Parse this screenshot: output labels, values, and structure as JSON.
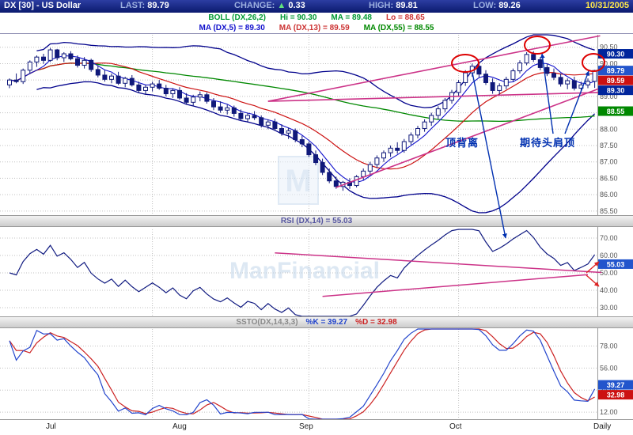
{
  "header": {
    "symbol_title": "DX [30] - US Dollar",
    "last_label": "LAST:",
    "last_value": "89.79",
    "change_label": "CHANGE:",
    "change_arrow": "▲",
    "change_value": "0.33",
    "high_label": "HIGH:",
    "high_value": "89.81",
    "low_label": "LOW:",
    "low_value": "89.26",
    "date": "10/31/2005"
  },
  "boll_row": {
    "label": "BOLL (DX,26,2)",
    "hi": "Hi = 90.30",
    "ma": "MA = 89.48",
    "lo": "Lo = 88.65"
  },
  "ma_row": {
    "ma5": "MA (DX,5) = 89.30",
    "ma13": "MA (DX,13) = 89.59",
    "ma55": "MA (DX,55) = 88.55"
  },
  "rsi_header": "RSI (DX,14) = 55.03",
  "ssto_header": {
    "label": "SSTO(DX,14,3,3)",
    "k": "%K = 39.27",
    "d": "%D = 32.98"
  },
  "annotations": {
    "top_divergence": "顶背离",
    "head_shoulders": "期待头肩顶"
  },
  "watermark": {
    "text": "ManFinancial",
    "logo": "M"
  },
  "axis": {
    "months": [
      "Jul",
      "Aug",
      "Sep",
      "Oct"
    ],
    "period": "Daily"
  },
  "chart_data": {
    "type": "candlestick",
    "symbol": "DX (US Dollar Index), 30-min window shown as Daily",
    "title": "DX [30] - US Dollar",
    "last": 89.79,
    "change": 0.33,
    "high": 89.81,
    "low": 89.26,
    "date": "10/31/2005",
    "candles_format": [
      "open",
      "high",
      "low",
      "close"
    ],
    "candles": [
      [
        89.35,
        89.55,
        89.25,
        89.5
      ],
      [
        89.5,
        89.7,
        89.4,
        89.45
      ],
      [
        89.45,
        89.85,
        89.38,
        89.8
      ],
      [
        89.8,
        90.1,
        89.7,
        90.05
      ],
      [
        90.05,
        90.25,
        89.9,
        90.2
      ],
      [
        90.2,
        90.3,
        90.0,
        90.1
      ],
      [
        90.1,
        90.48,
        90.05,
        90.42
      ],
      [
        90.42,
        90.45,
        90.1,
        90.18
      ],
      [
        90.18,
        90.35,
        90.05,
        90.3
      ],
      [
        90.3,
        90.38,
        90.1,
        90.15
      ],
      [
        90.15,
        90.25,
        89.88,
        89.95
      ],
      [
        89.95,
        90.2,
        89.85,
        90.1
      ],
      [
        90.1,
        90.15,
        89.75,
        89.82
      ],
      [
        89.82,
        89.95,
        89.58,
        89.65
      ],
      [
        89.65,
        89.8,
        89.45,
        89.52
      ],
      [
        89.52,
        89.7,
        89.4,
        89.62
      ],
      [
        89.62,
        89.75,
        89.35,
        89.4
      ],
      [
        89.4,
        89.6,
        89.28,
        89.55
      ],
      [
        89.55,
        89.65,
        89.3,
        89.35
      ],
      [
        89.35,
        89.45,
        89.1,
        89.18
      ],
      [
        89.18,
        89.35,
        89.05,
        89.28
      ],
      [
        89.28,
        89.45,
        89.15,
        89.38
      ],
      [
        89.38,
        89.5,
        89.2,
        89.25
      ],
      [
        89.25,
        89.35,
        89.0,
        89.08
      ],
      [
        89.08,
        89.25,
        88.95,
        89.18
      ],
      [
        89.18,
        89.28,
        88.9,
        88.95
      ],
      [
        88.95,
        89.1,
        88.75,
        88.82
      ],
      [
        88.82,
        89.05,
        88.7,
        88.98
      ],
      [
        88.98,
        89.15,
        88.85,
        89.05
      ],
      [
        89.05,
        89.12,
        88.78,
        88.85
      ],
      [
        88.85,
        88.95,
        88.58,
        88.68
      ],
      [
        88.68,
        88.85,
        88.5,
        88.58
      ],
      [
        88.58,
        88.75,
        88.45,
        88.65
      ],
      [
        88.65,
        88.72,
        88.38,
        88.48
      ],
      [
        88.48,
        88.6,
        88.25,
        88.32
      ],
      [
        88.32,
        88.5,
        88.2,
        88.42
      ],
      [
        88.42,
        88.55,
        88.28,
        88.35
      ],
      [
        88.35,
        88.42,
        88.05,
        88.12
      ],
      [
        88.12,
        88.3,
        88.0,
        88.22
      ],
      [
        88.22,
        88.32,
        87.95,
        88.02
      ],
      [
        88.02,
        88.15,
        87.8,
        87.88
      ],
      [
        87.88,
        88.05,
        87.7,
        87.95
      ],
      [
        87.95,
        88.02,
        87.6,
        87.68
      ],
      [
        87.68,
        87.8,
        87.45,
        87.55
      ],
      [
        87.55,
        87.62,
        87.15,
        87.22
      ],
      [
        87.22,
        87.35,
        86.9,
        86.98
      ],
      [
        86.98,
        87.1,
        86.6,
        86.68
      ],
      [
        86.68,
        86.8,
        86.35,
        86.42
      ],
      [
        86.42,
        86.55,
        86.18,
        86.25
      ],
      [
        86.25,
        86.42,
        86.12,
        86.38
      ],
      [
        86.38,
        86.5,
        86.18,
        86.28
      ],
      [
        86.28,
        86.6,
        86.22,
        86.55
      ],
      [
        86.55,
        86.8,
        86.45,
        86.72
      ],
      [
        86.72,
        87.0,
        86.62,
        86.92
      ],
      [
        86.92,
        87.2,
        86.82,
        87.12
      ],
      [
        87.12,
        87.35,
        87.0,
        87.28
      ],
      [
        87.28,
        87.5,
        87.15,
        87.42
      ],
      [
        87.42,
        87.6,
        87.25,
        87.35
      ],
      [
        87.35,
        87.7,
        87.28,
        87.62
      ],
      [
        87.62,
        87.9,
        87.52,
        87.82
      ],
      [
        87.82,
        88.1,
        87.72,
        88.02
      ],
      [
        88.02,
        88.3,
        87.92,
        88.22
      ],
      [
        88.22,
        88.5,
        88.1,
        88.42
      ],
      [
        88.42,
        88.7,
        88.3,
        88.62
      ],
      [
        88.62,
        88.95,
        88.52,
        88.88
      ],
      [
        88.88,
        89.2,
        88.78,
        89.12
      ],
      [
        89.12,
        89.5,
        89.02,
        89.42
      ],
      [
        89.42,
        89.8,
        89.32,
        89.72
      ],
      [
        89.72,
        90.0,
        89.6,
        89.92
      ],
      [
        89.92,
        89.98,
        89.58,
        89.68
      ],
      [
        89.68,
        89.8,
        89.35,
        89.42
      ],
      [
        89.42,
        89.55,
        89.08,
        89.18
      ],
      [
        89.18,
        89.4,
        89.05,
        89.32
      ],
      [
        89.32,
        89.6,
        89.22,
        89.52
      ],
      [
        89.52,
        89.85,
        89.45,
        89.78
      ],
      [
        89.78,
        90.1,
        89.7,
        90.02
      ],
      [
        90.02,
        90.35,
        89.95,
        90.28
      ],
      [
        90.28,
        90.38,
        90.05,
        90.12
      ],
      [
        90.12,
        90.2,
        89.8,
        89.88
      ],
      [
        89.88,
        90.0,
        89.62,
        89.7
      ],
      [
        89.7,
        89.85,
        89.5,
        89.58
      ],
      [
        89.58,
        89.7,
        89.3,
        89.38
      ],
      [
        89.38,
        89.55,
        89.22,
        89.48
      ],
      [
        89.48,
        89.6,
        89.18,
        89.25
      ],
      [
        89.25,
        89.45,
        89.15,
        89.35
      ],
      [
        89.35,
        89.55,
        89.25,
        89.46
      ],
      [
        89.46,
        89.81,
        89.26,
        89.79
      ]
    ],
    "month_start_days": [
      0,
      21,
      44,
      66
    ],
    "indicators": {
      "boll": [
        26,
        2
      ],
      "boll_values": {
        "hi": 90.3,
        "ma": 89.48,
        "lo": 88.65
      },
      "ma_periods": [
        5,
        13,
        55
      ],
      "ma_values": {
        "ma5": 89.3,
        "ma13": 89.59,
        "ma55": 88.55
      },
      "rsi_period": 14,
      "rsi_value": 55.03,
      "ssto": [
        14,
        3,
        3
      ],
      "ssto_values": {
        "k": 39.27,
        "d": 32.98
      }
    },
    "main_axis_ticks": [
      90.5,
      90.0,
      89.5,
      89.0,
      88.5,
      88.0,
      87.5,
      87.0,
      86.5,
      86.0,
      85.5
    ],
    "main_axis_boxes": [
      {
        "value": 90.3,
        "color": "#00259c"
      },
      {
        "value": 89.79,
        "color": "#2255cc"
      },
      {
        "value": 89.59,
        "color": "#cc1111"
      },
      {
        "value": 89.3,
        "color": "#00259c"
      },
      {
        "value": 88.55,
        "color": "#008800"
      }
    ],
    "main_range": [
      85.4,
      90.88
    ],
    "rsi_ticks": [
      70.0,
      60.0,
      50.0,
      40.0,
      30.0
    ],
    "rsi_box": {
      "value": 55.03,
      "color": "#2255cc"
    },
    "rsi_range": [
      25,
      75
    ],
    "ssto_ticks": [
      78.0,
      56.0,
      34.0,
      12.0
    ],
    "ssto_boxes": [
      {
        "value": 39.27,
        "color": "#2255cc"
      },
      {
        "value": 32.98,
        "color": "#cc1111"
      }
    ],
    "ssto_range": [
      5,
      95
    ],
    "trendlines_main": [
      [
        [
          38,
          88.85
        ],
        [
          86.8,
          90.85
        ]
      ],
      [
        [
          38,
          88.85
        ],
        [
          86.8,
          89.12
        ]
      ],
      [
        [
          48,
          86.22
        ],
        [
          86.8,
          89.25
        ]
      ]
    ],
    "trendlines_rsi": [
      [
        [
          39,
          61.5
        ],
        [
          87,
          50.2
        ]
      ],
      [
        [
          46,
          36.5
        ],
        [
          85,
          49.0
        ]
      ]
    ],
    "circles": [
      [
        588,
        80,
        17,
        11
      ],
      [
        679,
        57,
        16,
        11
      ],
      [
        750,
        79,
        14,
        11
      ]
    ],
    "arrows_blue": [
      [
        [
          597,
          92
        ],
        [
          639,
          301
        ]
      ],
      [
        [
          699,
          169
        ],
        [
          685,
          68
        ]
      ],
      [
        [
          714,
          169
        ],
        [
          744,
          90
        ]
      ]
    ],
    "arrows_red": [
      [
        [
          741,
          345
        ],
        [
          757,
          331
        ]
      ],
      [
        [
          741,
          348
        ],
        [
          757,
          362
        ]
      ]
    ],
    "colors": {
      "up": "#ffffff",
      "down": "#10197a",
      "boll": "#00008b",
      "ma5": "#1111cc",
      "ma13": "#cc1111",
      "ma55": "#008800",
      "trend": "#cc3388",
      "rsi": "#101a80",
      "k": "#2244cc",
      "d": "#cc2222",
      "grid": "#c0c0c0",
      "annotation": "#0030b0",
      "circle": "#dd0000"
    }
  }
}
